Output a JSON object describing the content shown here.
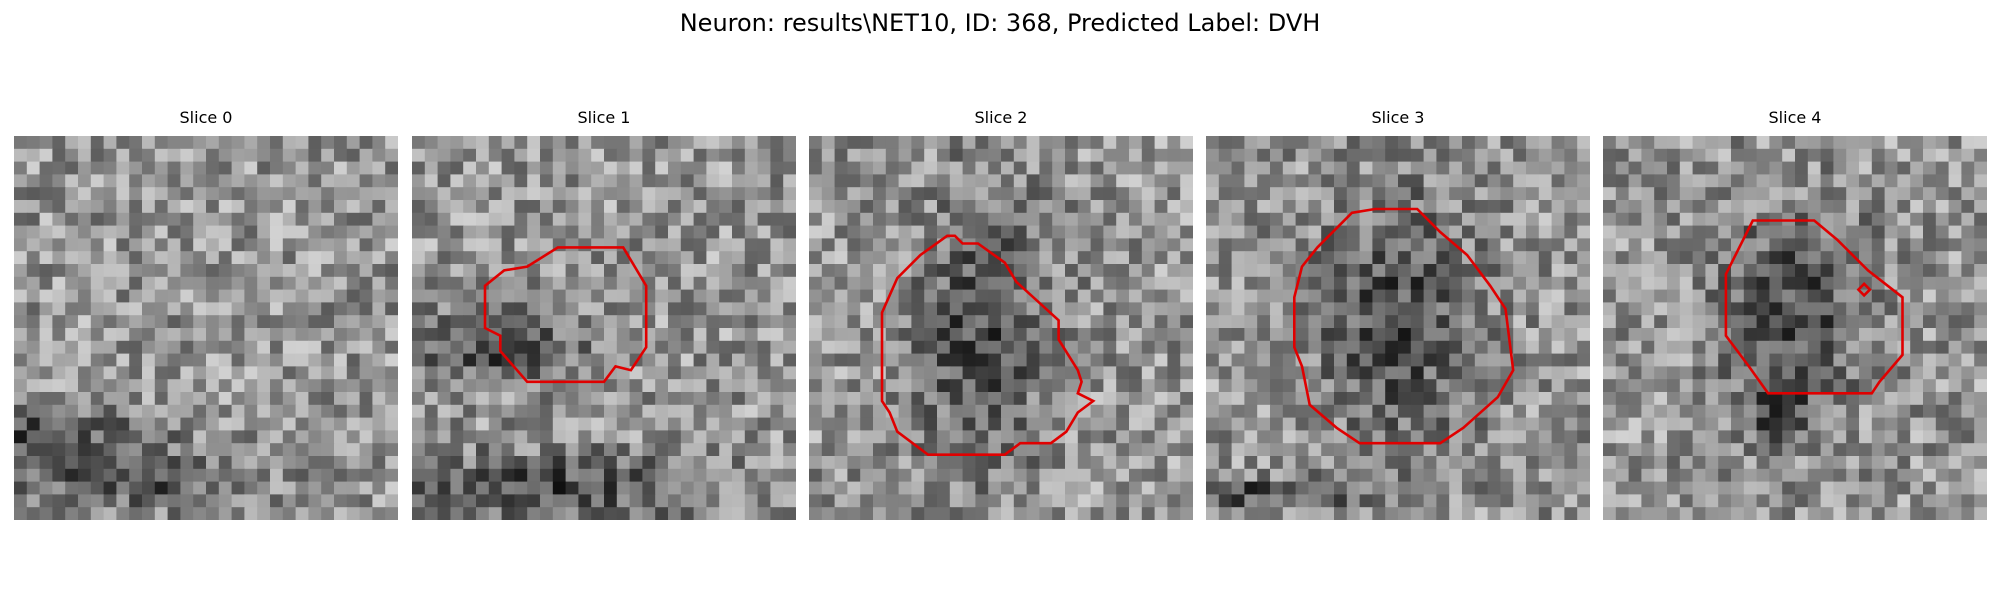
{
  "figure": {
    "title": "Neuron: results\\NET10, ID: 368, Predicted Label: DVH",
    "contour_color": "#e00000",
    "grid_size": 30
  },
  "slices": [
    {
      "title": "Slice 0",
      "seed": 11,
      "dark": [
        [
          0.3,
          0.9,
          0.35,
          0.08
        ],
        [
          0.05,
          0.78,
          0.4,
          0.1
        ]
      ],
      "contours": []
    },
    {
      "title": "Slice 1",
      "seed": 23,
      "dark": [
        [
          0.35,
          0.92,
          0.5,
          0.12
        ],
        [
          0.2,
          0.55,
          0.3,
          0.12
        ]
      ],
      "contours": [
        [
          [
            0.38,
            0.29
          ],
          [
            0.55,
            0.29
          ],
          [
            0.61,
            0.39
          ],
          [
            0.61,
            0.55
          ],
          [
            0.57,
            0.61
          ],
          [
            0.53,
            0.6
          ],
          [
            0.5,
            0.64
          ],
          [
            0.3,
            0.64
          ],
          [
            0.23,
            0.56
          ],
          [
            0.23,
            0.52
          ],
          [
            0.19,
            0.5
          ],
          [
            0.19,
            0.39
          ],
          [
            0.24,
            0.35
          ],
          [
            0.3,
            0.34
          ]
        ]
      ]
    },
    {
      "title": "Slice 2",
      "seed": 37,
      "dark": [
        [
          0.45,
          0.52,
          0.22,
          0.45
        ]
      ],
      "contours": [
        [
          [
            0.36,
            0.26
          ],
          [
            0.38,
            0.26
          ],
          [
            0.4,
            0.28
          ],
          [
            0.44,
            0.28
          ],
          [
            0.51,
            0.33
          ],
          [
            0.54,
            0.38
          ],
          [
            0.65,
            0.48
          ],
          [
            0.65,
            0.53
          ],
          [
            0.7,
            0.61
          ],
          [
            0.71,
            0.64
          ],
          [
            0.7,
            0.67
          ],
          [
            0.74,
            0.69
          ],
          [
            0.7,
            0.72
          ],
          [
            0.67,
            0.77
          ],
          [
            0.63,
            0.8
          ],
          [
            0.55,
            0.8
          ],
          [
            0.51,
            0.83
          ],
          [
            0.31,
            0.83
          ],
          [
            0.23,
            0.77
          ],
          [
            0.21,
            0.72
          ],
          [
            0.19,
            0.69
          ],
          [
            0.19,
            0.46
          ],
          [
            0.23,
            0.37
          ],
          [
            0.29,
            0.31
          ]
        ]
      ]
    },
    {
      "title": "Slice 3",
      "seed": 53,
      "dark": [
        [
          0.5,
          0.48,
          0.26,
          0.42
        ],
        [
          0.1,
          0.93,
          0.45,
          0.05
        ]
      ],
      "contours": [
        [
          [
            0.38,
            0.2
          ],
          [
            0.44,
            0.19
          ],
          [
            0.55,
            0.19
          ],
          [
            0.61,
            0.25
          ],
          [
            0.68,
            0.31
          ],
          [
            0.74,
            0.39
          ],
          [
            0.78,
            0.45
          ],
          [
            0.8,
            0.61
          ],
          [
            0.76,
            0.68
          ],
          [
            0.67,
            0.76
          ],
          [
            0.61,
            0.8
          ],
          [
            0.4,
            0.8
          ],
          [
            0.34,
            0.76
          ],
          [
            0.27,
            0.7
          ],
          [
            0.25,
            0.6
          ],
          [
            0.23,
            0.55
          ],
          [
            0.23,
            0.42
          ],
          [
            0.25,
            0.34
          ],
          [
            0.29,
            0.29
          ]
        ]
      ]
    },
    {
      "title": "Slice 4",
      "seed": 71,
      "dark": [
        [
          0.5,
          0.45,
          0.24,
          0.32
        ],
        [
          0.45,
          0.72,
          0.1,
          0.12
        ]
      ],
      "contours": [
        [
          [
            0.39,
            0.22
          ],
          [
            0.55,
            0.22
          ],
          [
            0.61,
            0.27
          ],
          [
            0.69,
            0.35
          ],
          [
            0.78,
            0.42
          ],
          [
            0.78,
            0.57
          ],
          [
            0.72,
            0.64
          ],
          [
            0.7,
            0.67
          ],
          [
            0.6,
            0.67
          ],
          [
            0.43,
            0.67
          ],
          [
            0.38,
            0.6
          ],
          [
            0.32,
            0.52
          ],
          [
            0.32,
            0.36
          ]
        ],
        [
          [
            0.68,
            0.385
          ],
          [
            0.695,
            0.4
          ],
          [
            0.68,
            0.415
          ],
          [
            0.665,
            0.4
          ]
        ]
      ]
    }
  ]
}
